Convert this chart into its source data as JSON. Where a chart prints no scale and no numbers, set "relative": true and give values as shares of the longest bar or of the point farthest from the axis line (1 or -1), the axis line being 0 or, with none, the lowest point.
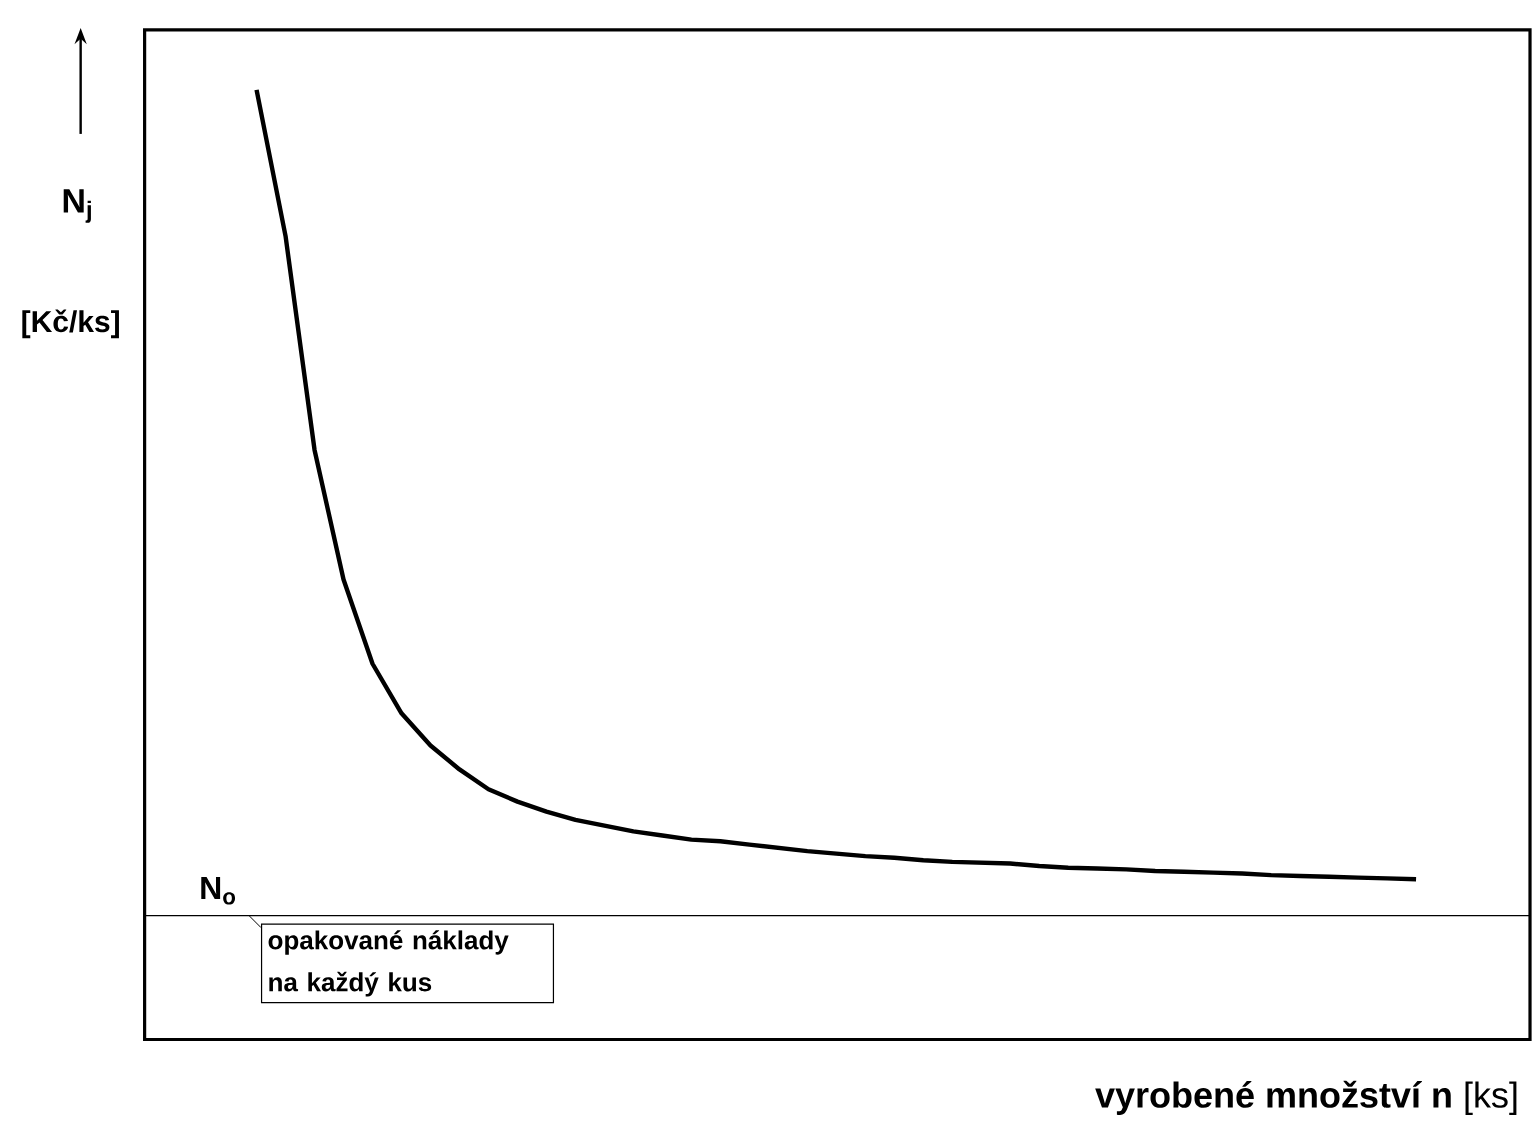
{
  "chart_data": {
    "type": "line",
    "relative": true,
    "marker": "none",
    "xlabel": "**vyrobené množství n** [ks]",
    "ylabel": "N$_{j}$",
    "categories": [
      null,
      null,
      null,
      null,
      null,
      null,
      null,
      null,
      null,
      null,
      null,
      null,
      null,
      null,
      null,
      null,
      null,
      null,
      null,
      null,
      null,
      null,
      null,
      null,
      null,
      null,
      null,
      null,
      null,
      null,
      null,
      null,
      null,
      null,
      null,
      null,
      null,
      null,
      null,
      null,
      null
    ],
    "values": [
      1.0,
      0.823,
      0.564,
      0.407,
      0.305,
      0.245,
      0.206,
      0.177,
      0.153,
      0.138,
      0.126,
      0.116,
      0.109,
      0.102,
      0.097,
      0.092,
      0.09,
      0.086,
      0.082,
      0.078,
      0.075,
      0.072,
      0.07,
      0.067,
      0.065,
      0.064,
      0.063,
      0.06,
      0.058,
      0.057,
      0.056,
      0.054,
      0.053,
      0.052,
      0.051,
      0.049,
      0.048,
      0.047,
      0.046,
      0.045,
      0.044
    ],
    "color": "#000000",
    "ref_lines": [
      {
        "axis": "y",
        "value": 0,
        "label": "N$_{o}$",
        "color": "#000000"
      }
    ],
    "annotations": [
      "[Kč/ks]",
      "opakované náklady na každý kus"
    ]
  }
}
